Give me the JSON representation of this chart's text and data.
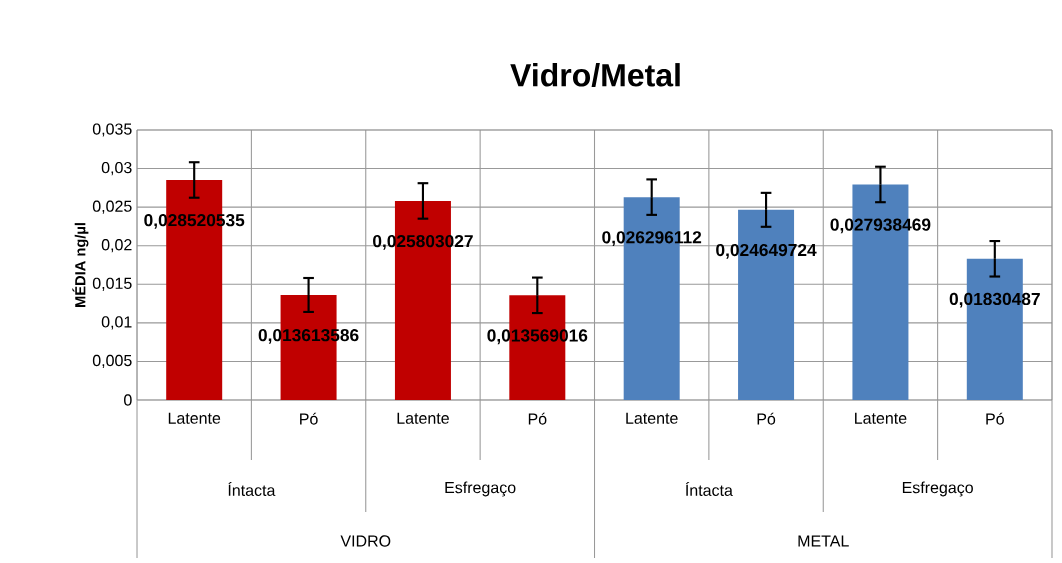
{
  "chart_data": {
    "type": "bar",
    "title": "Vidro/Metal",
    "ylabel": "MÉDIA    ng/µl",
    "categories": [
      "Latente",
      "Pó",
      "Latente",
      "Pó",
      "Latente",
      "Pó",
      "Latente",
      "Pó"
    ],
    "values": [
      0.028520535,
      0.013613586,
      0.025803027,
      0.013569016,
      0.026296112,
      0.024649724,
      0.027938469,
      0.01830487
    ],
    "value_labels": [
      "0,028520535",
      "0,013613586",
      "0,025803027",
      "0,013569016",
      "0,026296112",
      "0,024649724",
      "0,027938469",
      "0,01830487"
    ],
    "errors": [
      0.0023,
      0.0022,
      0.0023,
      0.0023,
      0.0023,
      0.0022,
      0.0023,
      0.0023
    ],
    "colors": [
      "#c00000",
      "#c00000",
      "#c00000",
      "#c00000",
      "#4f81bd",
      "#4f81bd",
      "#4f81bd",
      "#4f81bd"
    ],
    "annotations": [
      "Íntacta",
      "Esfregaço",
      "Íntacta",
      "Esfregaço",
      "VIDRO",
      "METAL"
    ],
    "ylim": [
      0,
      0.035
    ],
    "yticks": [
      0,
      {
        "value": 0.005,
        "label": "0,005"
      },
      {
        "value": 0.01,
        "label": "0,01"
      },
      {
        "value": 0.015,
        "label": "0,015"
      },
      {
        "value": 0.02,
        "label": "0,02"
      },
      {
        "value": 0.025,
        "label": "0,025"
      },
      {
        "value": 0.03,
        "label": "0,03"
      },
      {
        "value": 0.035,
        "label": "0,035"
      }
    ],
    "grid": true
  }
}
